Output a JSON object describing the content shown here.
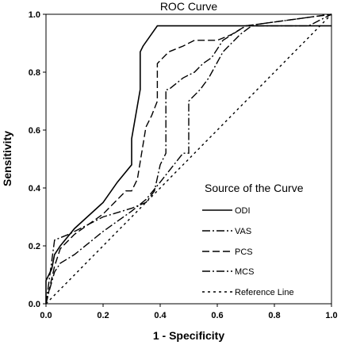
{
  "chart_data": {
    "type": "line",
    "title": "ROC Curve",
    "xlabel": "1 - Specificity",
    "ylabel": "Sensitivity",
    "xlim": [
      0.0,
      1.0
    ],
    "ylim": [
      0.0,
      1.0
    ],
    "x_ticks": [
      "0.0",
      "0.2",
      "0.4",
      "0.6",
      "0.8",
      "1.0"
    ],
    "y_ticks": [
      "0.0",
      "0.2",
      "0.4",
      "0.6",
      "0.8",
      "1.0"
    ],
    "grid": false,
    "legend": {
      "title": "Source of the Curve",
      "placement": "bottom-right"
    },
    "series": [
      {
        "name": "ODI",
        "style": "solid",
        "x": [
          0.0,
          0.0,
          0.02,
          0.03,
          0.05,
          0.1,
          0.2,
          0.25,
          0.3,
          0.3,
          0.33,
          0.33,
          0.34,
          0.39,
          1.0
        ],
        "y": [
          0.0,
          0.08,
          0.12,
          0.17,
          0.2,
          0.26,
          0.35,
          0.42,
          0.48,
          0.57,
          0.74,
          0.87,
          0.89,
          0.96,
          0.96
        ]
      },
      {
        "name": "VAS",
        "style": "dash-dot",
        "x": [
          0.0,
          0.01,
          0.03,
          0.05,
          0.1,
          0.2,
          0.3,
          0.35,
          0.4,
          0.48,
          0.5,
          0.5,
          0.54,
          0.57,
          0.62,
          0.68,
          0.72,
          0.78,
          0.92,
          1.0
        ],
        "y": [
          0.0,
          0.04,
          0.11,
          0.14,
          0.17,
          0.25,
          0.32,
          0.36,
          0.42,
          0.52,
          0.52,
          0.7,
          0.74,
          0.78,
          0.87,
          0.93,
          0.96,
          0.96,
          0.96,
          1.0
        ]
      },
      {
        "name": "PCS",
        "style": "dashed",
        "x": [
          0.0,
          0.03,
          0.05,
          0.1,
          0.2,
          0.28,
          0.3,
          0.32,
          0.35,
          0.37,
          0.39,
          0.39,
          0.43,
          0.48,
          0.52,
          0.6,
          0.65,
          0.7,
          1.0
        ],
        "y": [
          0.0,
          0.13,
          0.19,
          0.24,
          0.31,
          0.39,
          0.39,
          0.43,
          0.61,
          0.65,
          0.7,
          0.83,
          0.87,
          0.89,
          0.91,
          0.91,
          0.93,
          0.96,
          1.0
        ]
      },
      {
        "name": "MCS",
        "style": "dash-dot",
        "x": [
          0.0,
          0.03,
          0.08,
          0.2,
          0.3,
          0.35,
          0.38,
          0.4,
          0.42,
          0.42,
          0.43,
          0.48,
          0.52,
          0.55,
          0.58,
          0.62,
          0.7,
          1.0
        ],
        "y": [
          0.0,
          0.22,
          0.24,
          0.3,
          0.33,
          0.35,
          0.39,
          0.48,
          0.52,
          0.74,
          0.74,
          0.78,
          0.8,
          0.83,
          0.85,
          0.91,
          0.96,
          1.0
        ]
      },
      {
        "name": "Reference Line",
        "style": "dotted",
        "x": [
          0.0,
          1.0
        ],
        "y": [
          0.0,
          1.0
        ]
      }
    ]
  }
}
